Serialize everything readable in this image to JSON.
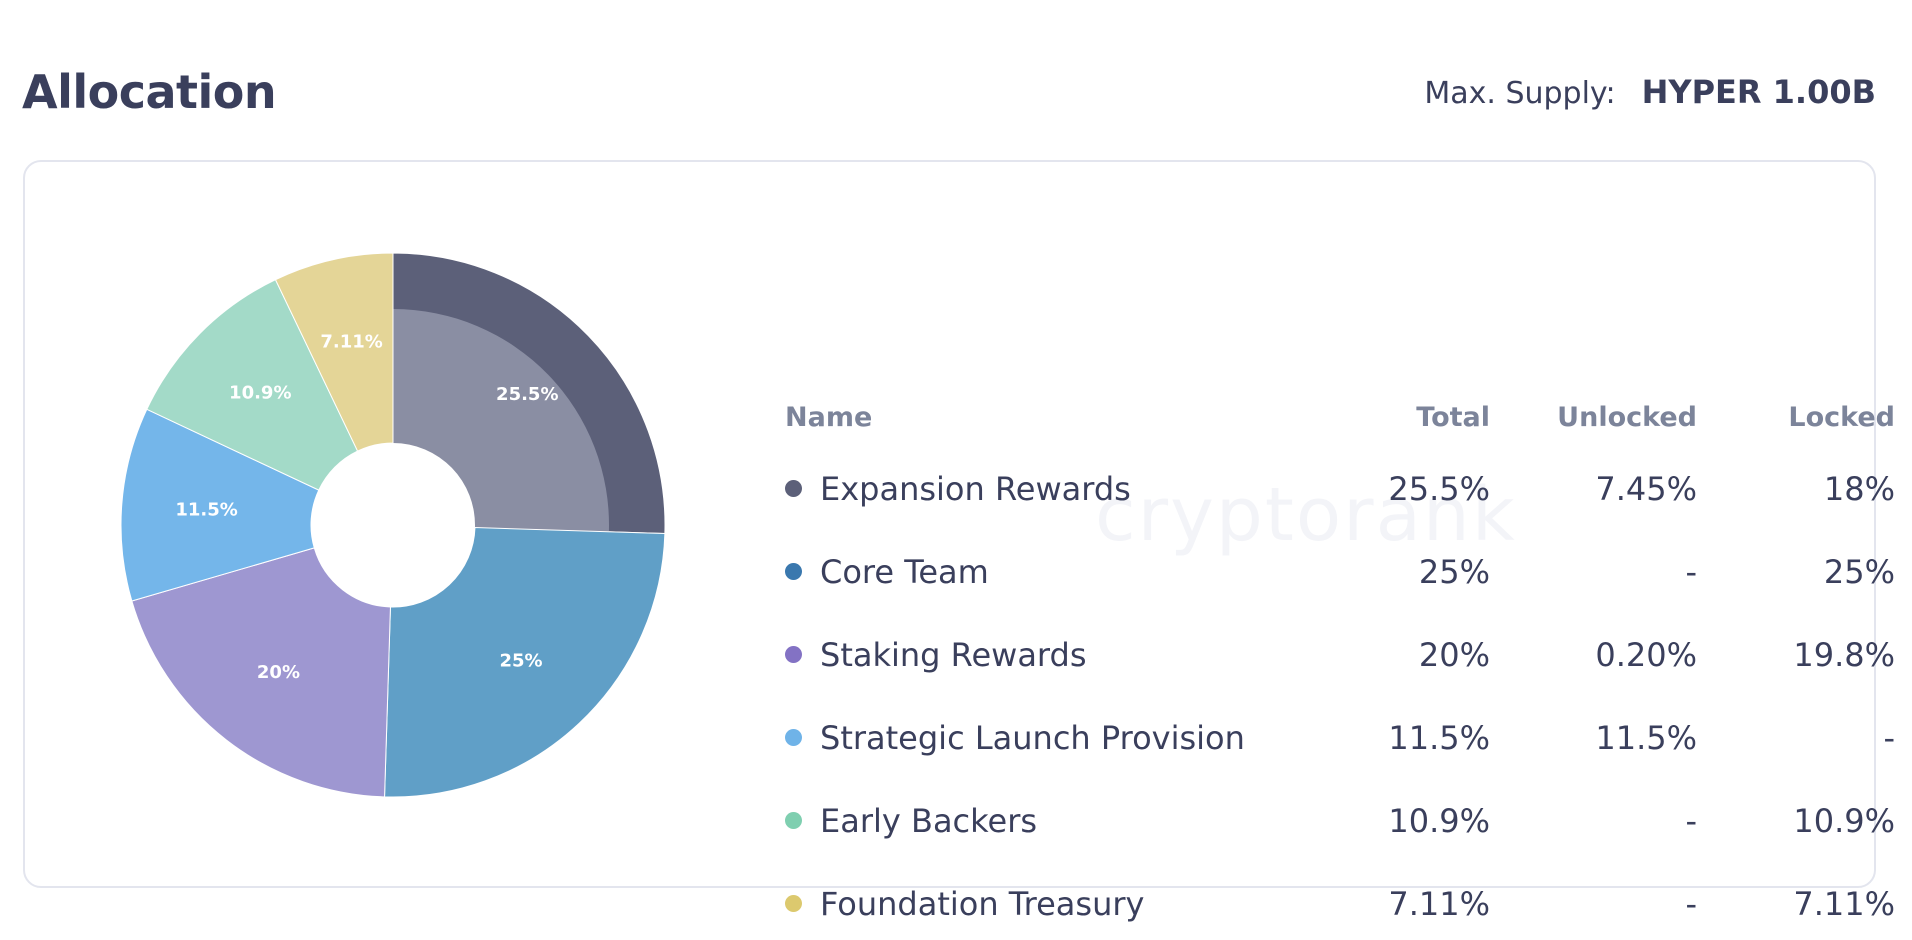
{
  "header": {
    "title": "Allocation",
    "supply_label": "Max. Supply:",
    "supply_value": "HYPER 1.00B"
  },
  "watermark": "cryptorank",
  "table": {
    "columns": [
      "Name",
      "Total",
      "Unlocked",
      "Locked"
    ],
    "rows": [
      {
        "name": "Expansion Rewards",
        "total": "25.5%",
        "unlocked": "7.45%",
        "locked": "18%",
        "color": "#5c6079"
      },
      {
        "name": "Core Team",
        "total": "25%",
        "unlocked": "-",
        "locked": "25%",
        "color": "#3a78ae"
      },
      {
        "name": "Staking Rewards",
        "total": "20%",
        "unlocked": "0.20%",
        "locked": "19.8%",
        "color": "#8372c4"
      },
      {
        "name": "Strategic Launch Provision",
        "total": "11.5%",
        "unlocked": "11.5%",
        "locked": "-",
        "color": "#6fb3e8"
      },
      {
        "name": "Early Backers",
        "total": "10.9%",
        "unlocked": "-",
        "locked": "10.9%",
        "color": "#7fcfb0"
      },
      {
        "name": "Foundation Treasury",
        "total": "7.11%",
        "unlocked": "-",
        "locked": "7.11%",
        "color": "#dcc96e"
      }
    ]
  },
  "chart_data": {
    "type": "pie",
    "slices": [
      {
        "name": "Expansion Rewards",
        "value": 25.5,
        "unlocked": 7.45,
        "label": "25.5%",
        "color": "#5c6079",
        "inner_color": "#8a8ea3"
      },
      {
        "name": "Core Team",
        "value": 25,
        "unlocked": 0,
        "label": "25%",
        "color": "#609fc7"
      },
      {
        "name": "Staking Rewards",
        "value": 20,
        "unlocked": 0.2,
        "label": "20%",
        "color": "#9e97d1"
      },
      {
        "name": "Strategic Launch Provision",
        "value": 11.5,
        "unlocked": 11.5,
        "label": "11.5%",
        "color": "#74b6ea"
      },
      {
        "name": "Early Backers",
        "value": 10.9,
        "unlocked": 0,
        "label": "10.9%",
        "color": "#a3dac8"
      },
      {
        "name": "Foundation Treasury",
        "value": 7.11,
        "unlocked": 0,
        "label": "7.11%",
        "color": "#e4d597"
      }
    ]
  }
}
